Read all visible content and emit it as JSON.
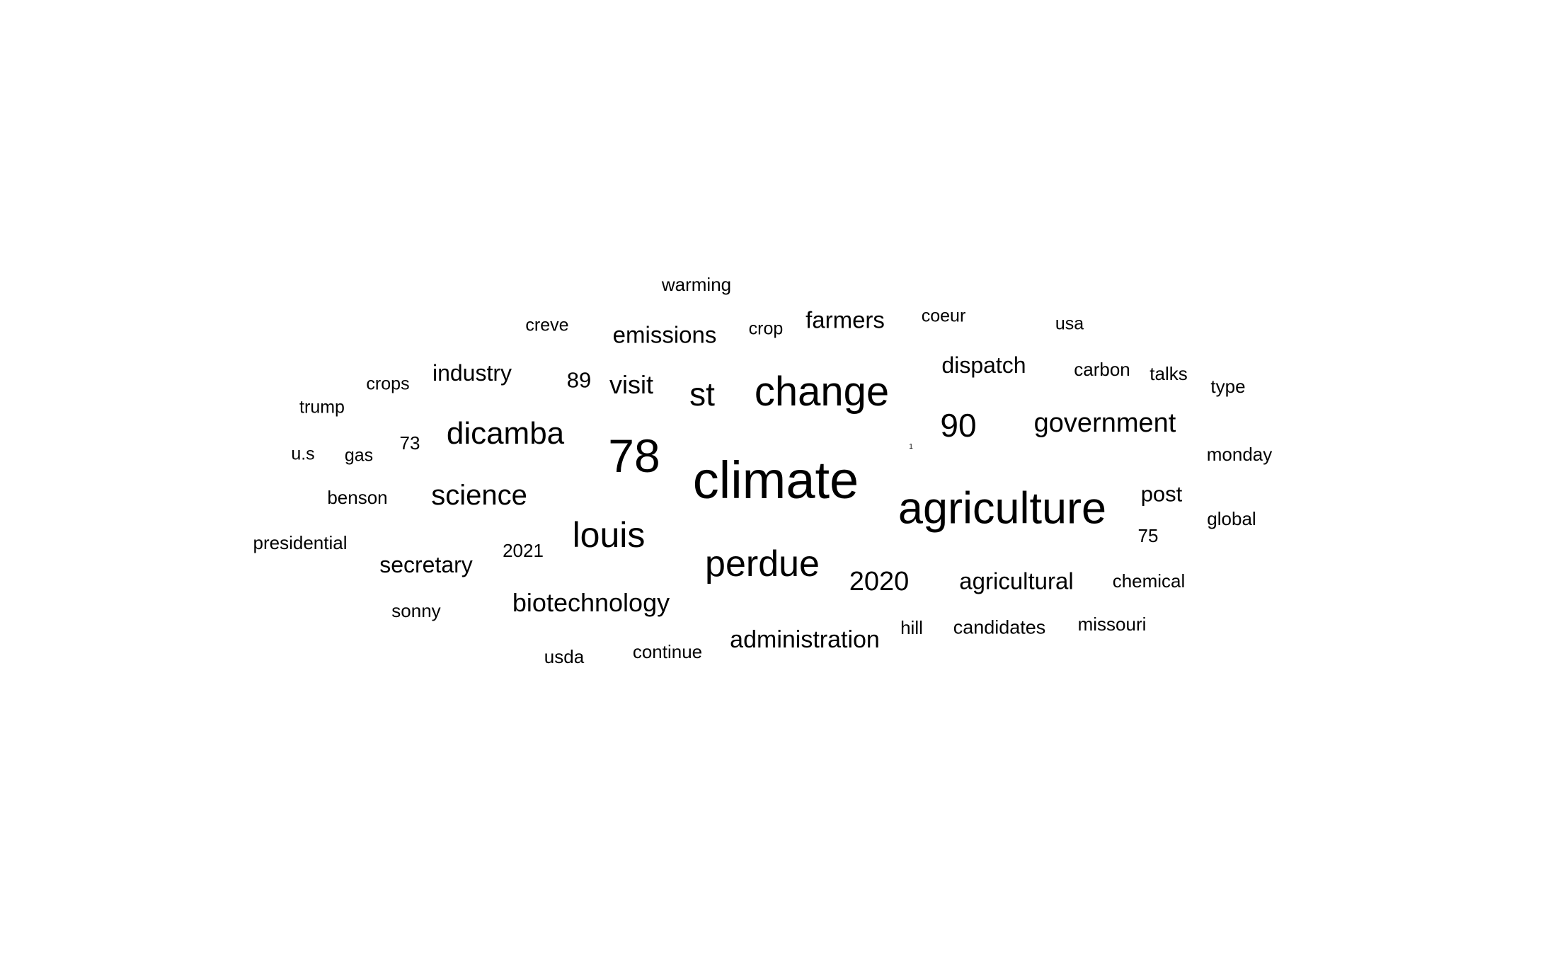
{
  "words": {
    "climate": "climate",
    "agriculture": "agriculture",
    "change": "change",
    "n78": "78",
    "perdue": "perdue",
    "louis": "louis",
    "st": "st",
    "n90": "90",
    "dicamba": "dicamba",
    "science": "science",
    "government": "government",
    "n2020": "2020",
    "biotechnology": "biotechnology",
    "visit": "visit",
    "administration": "administration",
    "agricultural": "agricultural",
    "emissions": "emissions",
    "secretary": "secretary",
    "dispatch": "dispatch",
    "farmers": "farmers",
    "industry": "industry",
    "post": "post",
    "n89": "89",
    "candidates": "candidates",
    "missouri": "missouri",
    "chemical": "chemical",
    "continue": "continue",
    "warming": "warming",
    "n2021": "2021",
    "hill": "hill",
    "carbon": "carbon",
    "talks": "talks",
    "global": "global",
    "monday": "monday",
    "type": "type",
    "usa": "usa",
    "coeur": "coeur",
    "crop": "crop",
    "creve": "creve",
    "crops": "crops",
    "trump": "trump",
    "us": "u.s",
    "gas": "gas",
    "n73": "73",
    "benson": "benson",
    "presidential": "presidential",
    "sonny": "sonny",
    "usda": "usda",
    "n75": "75",
    "n1": "1"
  }
}
